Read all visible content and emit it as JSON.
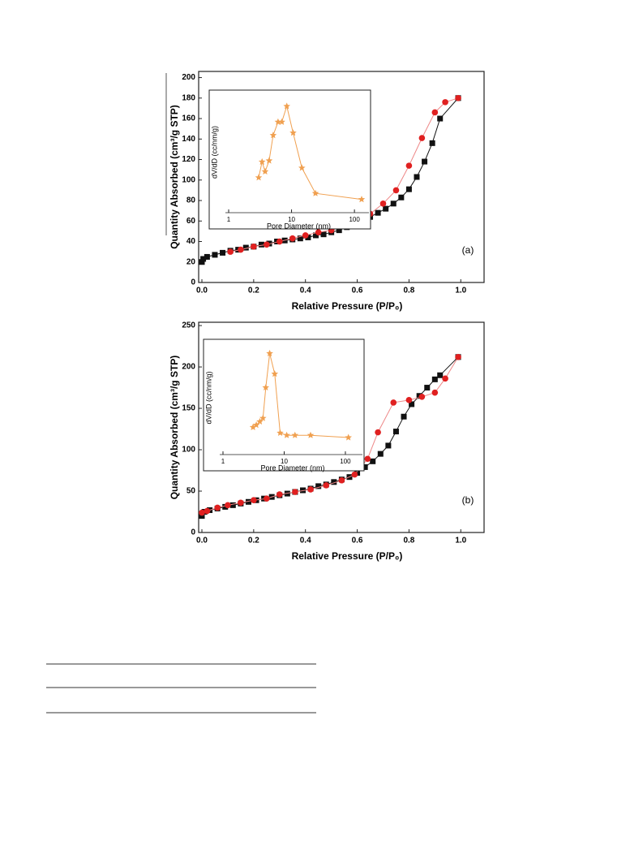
{
  "chart_data": [
    {
      "type": "scatter",
      "annotation": "(a)",
      "x_label": "Relative Pressure (P/P₀)",
      "y_label": "Quantity Absorbed (cm³/g STP)",
      "xlim": [
        0,
        1.09
      ],
      "ylim": [
        0,
        206
      ],
      "xticks": [
        {
          "value": 0,
          "label": "0.0"
        },
        0.2,
        0.4,
        0.6,
        0.8,
        {
          "value": 1,
          "label": "1.0"
        }
      ],
      "yticks": [
        0,
        20,
        40,
        60,
        80,
        100,
        120,
        140,
        160,
        180,
        200
      ],
      "series": [
        {
          "color": "#111111",
          "marker": "square",
          "x": [
            0,
            0.005,
            0.02,
            0.05,
            0.08,
            0.11,
            0.14,
            0.17,
            0.2,
            0.23,
            0.26,
            0.29,
            0.32,
            0.35,
            0.38,
            0.41,
            0.44,
            0.47,
            0.5,
            0.53,
            0.56,
            0.59,
            0.62,
            0.65,
            0.68,
            0.71,
            0.74,
            0.77,
            0.8,
            0.83,
            0.86,
            0.89,
            0.92,
            0.99
          ],
          "values": [
            20,
            23,
            25,
            27,
            29,
            31,
            32,
            34,
            35,
            37,
            38,
            40,
            41,
            42,
            43,
            44,
            46,
            47,
            49,
            51,
            54,
            57,
            60,
            64,
            68,
            72,
            77,
            83,
            91,
            103,
            118,
            136,
            160,
            180
          ]
        },
        {
          "color": "#e02020",
          "marker": "circle",
          "x": [
            0.99,
            0.94,
            0.9,
            0.85,
            0.8,
            0.75,
            0.7,
            0.65,
            0.6,
            0.55,
            0.5,
            0.45,
            0.4,
            0.35,
            0.3,
            0.25,
            0.2,
            0.15,
            0.11
          ],
          "values": [
            180,
            176,
            166,
            141,
            114,
            90,
            77,
            67,
            60,
            55,
            51,
            49,
            46,
            43,
            40,
            37,
            35,
            32,
            30
          ]
        }
      ]
    },
    {
      "type": "line",
      "x_label": "Pore Diameter (nm)",
      "y_label": "dV/dD (cc/nm/g)",
      "xscale": "log",
      "xlim": [
        1,
        170
      ],
      "ylim": [
        0,
        1
      ],
      "xticks": [
        1,
        10,
        100
      ],
      "series": [
        {
          "color": "#f0a050",
          "marker": "star",
          "x": [
            3.0,
            3.4,
            3.8,
            4.4,
            5.1,
            6.1,
            7.0,
            8.4,
            10.6,
            14.6,
            24,
            130
          ],
          "values": [
            0.29,
            0.42,
            0.34,
            0.43,
            0.64,
            0.75,
            0.75,
            0.88,
            0.66,
            0.37,
            0.16,
            0.11
          ]
        }
      ]
    },
    {
      "type": "scatter",
      "annotation": "(b)",
      "x_label": "Relative Pressure (P/P₀)",
      "y_label": "Quantity Absorbed (cm³/g STP)",
      "xlim": [
        0,
        1.09
      ],
      "ylim": [
        0,
        254
      ],
      "xticks": [
        {
          "value": 0,
          "label": "0.0"
        },
        0.2,
        0.4,
        0.6,
        0.8,
        {
          "value": 1,
          "label": "1.0"
        }
      ],
      "yticks": [
        0,
        50,
        100,
        150,
        200,
        250
      ],
      "series": [
        {
          "color": "#111111",
          "marker": "square",
          "x": [
            0,
            0.01,
            0.03,
            0.06,
            0.09,
            0.12,
            0.15,
            0.18,
            0.21,
            0.24,
            0.27,
            0.3,
            0.33,
            0.36,
            0.39,
            0.42,
            0.45,
            0.48,
            0.51,
            0.54,
            0.57,
            0.6,
            0.63,
            0.66,
            0.69,
            0.72,
            0.75,
            0.78,
            0.81,
            0.84,
            0.87,
            0.9,
            0.92,
            0.99
          ],
          "values": [
            20,
            25,
            27,
            29,
            31,
            33,
            35,
            37,
            39,
            41,
            43,
            45,
            47,
            49,
            51,
            53,
            56,
            58,
            61,
            64,
            67,
            72,
            79,
            86,
            95,
            105,
            122,
            140,
            155,
            165,
            175,
            185,
            190,
            212
          ]
        },
        {
          "color": "#e02020",
          "marker": "circle",
          "x": [
            0.99,
            0.94,
            0.9,
            0.85,
            0.8,
            0.74,
            0.68,
            0.64,
            0.59,
            0.54,
            0.48,
            0.42,
            0.36,
            0.3,
            0.25,
            0.2,
            0.15,
            0.1,
            0.06,
            0.02,
            0
          ],
          "values": [
            212,
            186,
            169,
            164,
            160,
            157,
            121,
            89,
            70,
            63,
            57,
            52,
            49,
            46,
            41,
            39,
            36,
            33,
            30,
            26,
            24
          ]
        }
      ]
    },
    {
      "type": "line",
      "x_label": "Pore Diameter (nm)",
      "y_label": "dV/dD (cc/nm/g)",
      "xscale": "log",
      "xlim": [
        1,
        190
      ],
      "ylim": [
        0,
        1
      ],
      "xticks": [
        1,
        10,
        100
      ],
      "series": [
        {
          "color": "#f0a050",
          "marker": "star",
          "x": [
            3.1,
            3.5,
            4.0,
            4.5,
            5.0,
            5.8,
            7.0,
            8.6,
            11,
            15,
            27,
            112
          ],
          "values": [
            0.24,
            0.26,
            0.29,
            0.32,
            0.59,
            0.89,
            0.71,
            0.19,
            0.17,
            0.17,
            0.17,
            0.15
          ]
        }
      ]
    }
  ]
}
